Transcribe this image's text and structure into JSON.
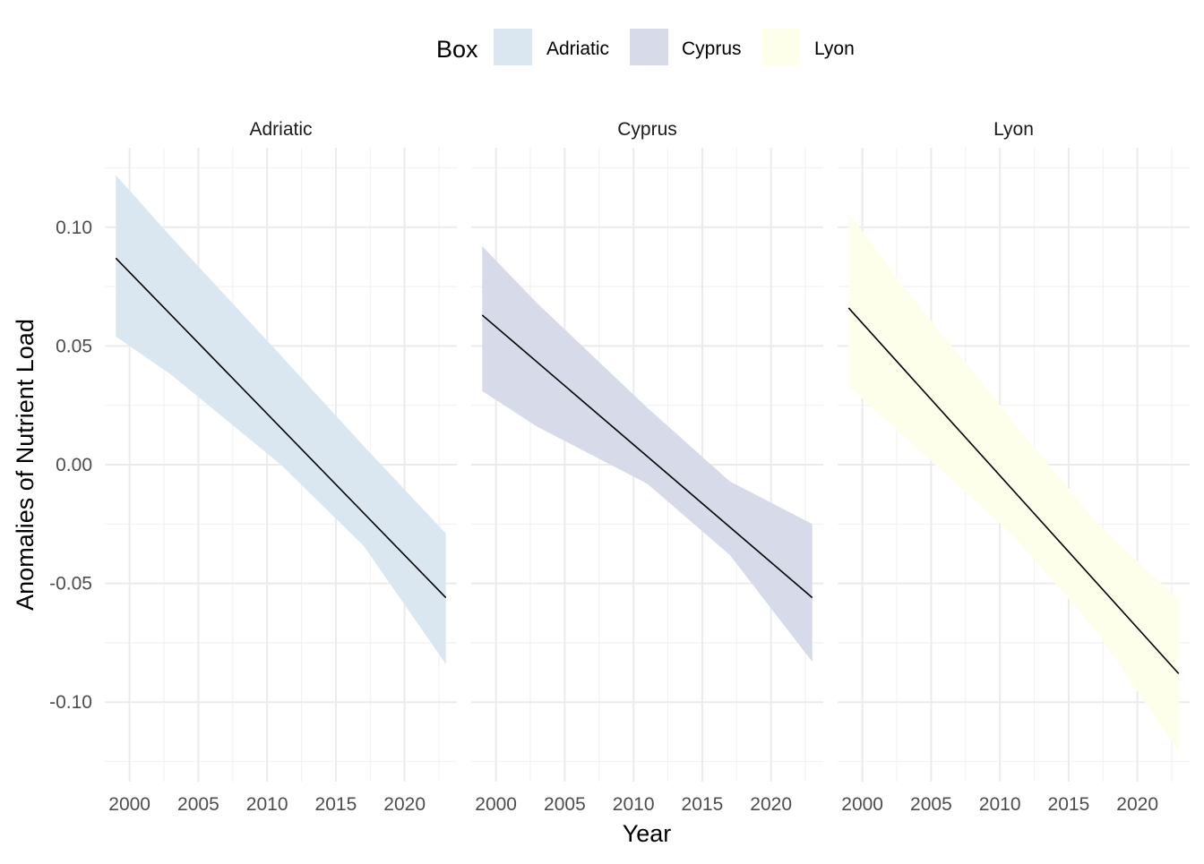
{
  "chart_data": {
    "type": "line",
    "xlabel": "Year",
    "ylabel": "Anomalies of Nutrient Load",
    "xlim": [
      1998.2,
      2023.8
    ],
    "ylim": [
      -0.13,
      0.13
    ],
    "x_ticks": [
      2000,
      2005,
      2010,
      2015,
      2020
    ],
    "x_tick_labels": [
      "2000",
      "2005",
      "2010",
      "2015",
      "2020"
    ],
    "y_ticks": [
      -0.1,
      -0.05,
      0,
      0.05,
      0.1
    ],
    "y_tick_labels": [
      "-0.10",
      "-0.05",
      "0.00",
      "0.05",
      "0.10"
    ],
    "grid": true,
    "legend": {
      "title": "Box",
      "placement": "top",
      "entries": [
        "Adriatic",
        "Cyprus",
        "Lyon"
      ]
    },
    "panels": [
      {
        "name": "Adriatic",
        "fill": "#dbe7f0",
        "line_color": "#000000",
        "x": [
          1999,
          2023
        ],
        "fit": [
          0.087,
          -0.056
        ],
        "lower": [
          0.054,
          -0.084
        ],
        "upper": [
          0.122,
          -0.029
        ],
        "band_x": [
          1999,
          2003,
          2011,
          2017,
          2023
        ],
        "band_lower": [
          0.054,
          0.038,
          0.0,
          -0.034,
          -0.084
        ],
        "band_upper": [
          0.122,
          0.096,
          0.046,
          0.008,
          -0.029
        ]
      },
      {
        "name": "Cyprus",
        "fill": "#d6dae9",
        "line_color": "#000000",
        "x": [
          1999,
          2023
        ],
        "fit": [
          0.063,
          -0.056
        ],
        "lower": [
          0.031,
          -0.083
        ],
        "upper": [
          0.092,
          -0.025
        ],
        "band_x": [
          1999,
          2003,
          2011,
          2017,
          2023
        ],
        "band_lower": [
          0.031,
          0.016,
          -0.008,
          -0.038,
          -0.083
        ],
        "band_upper": [
          0.092,
          0.068,
          0.024,
          -0.007,
          -0.025
        ]
      },
      {
        "name": "Lyon",
        "fill": "#fdffeb",
        "line_color": "#000000",
        "x": [
          1999,
          2023
        ],
        "fit": [
          0.066,
          -0.088
        ],
        "lower": [
          0.033,
          -0.121
        ],
        "upper": [
          0.106,
          -0.057
        ],
        "band_x": [
          1999,
          2003,
          2011,
          2017,
          2023
        ],
        "band_lower": [
          0.033,
          0.012,
          -0.03,
          -0.07,
          -0.121
        ],
        "band_upper": [
          0.106,
          0.075,
          0.018,
          -0.024,
          -0.057
        ]
      }
    ]
  }
}
